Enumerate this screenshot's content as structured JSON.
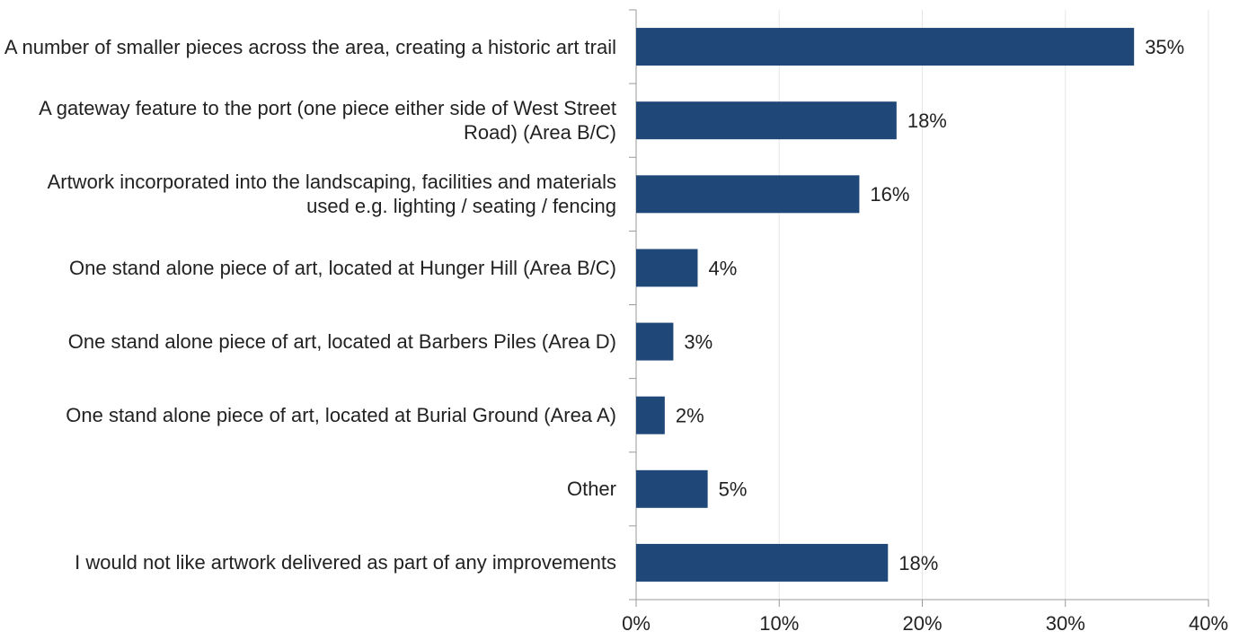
{
  "chart_data": {
    "type": "hbar",
    "categories": [
      "A number of smaller pieces across the area, creating a historic art trail",
      "A gateway feature to the port (one piece either side of West Street Road) (Area B/C)",
      "Artwork incorporated into the landscaping, facilities and materials used e.g. lighting / seating / fencing",
      "One stand alone piece of art, located at Hunger Hill (Area B/C)",
      "One stand alone piece of art, located at Barbers Piles (Area D)",
      "One stand alone piece of art, located at Burial Ground (Area A)",
      "Other",
      "I would not like artwork delivered as part of any improvements"
    ],
    "values": [
      34.8,
      18.2,
      15.6,
      4.3,
      2.6,
      2.0,
      5.0,
      17.6
    ],
    "value_labels": [
      "35%",
      "18%",
      "16%",
      "4%",
      "3%",
      "2%",
      "5%",
      "18%"
    ],
    "color": "#1f4778",
    "xlim": [
      0,
      40
    ],
    "xticks": [
      {
        "value": 0,
        "label": "0%"
      },
      {
        "value": 10,
        "label": "10%"
      },
      {
        "value": 20,
        "label": "20%"
      },
      {
        "value": 30,
        "label": "30%"
      },
      {
        "value": 40,
        "label": "40%"
      }
    ],
    "grid": true
  }
}
